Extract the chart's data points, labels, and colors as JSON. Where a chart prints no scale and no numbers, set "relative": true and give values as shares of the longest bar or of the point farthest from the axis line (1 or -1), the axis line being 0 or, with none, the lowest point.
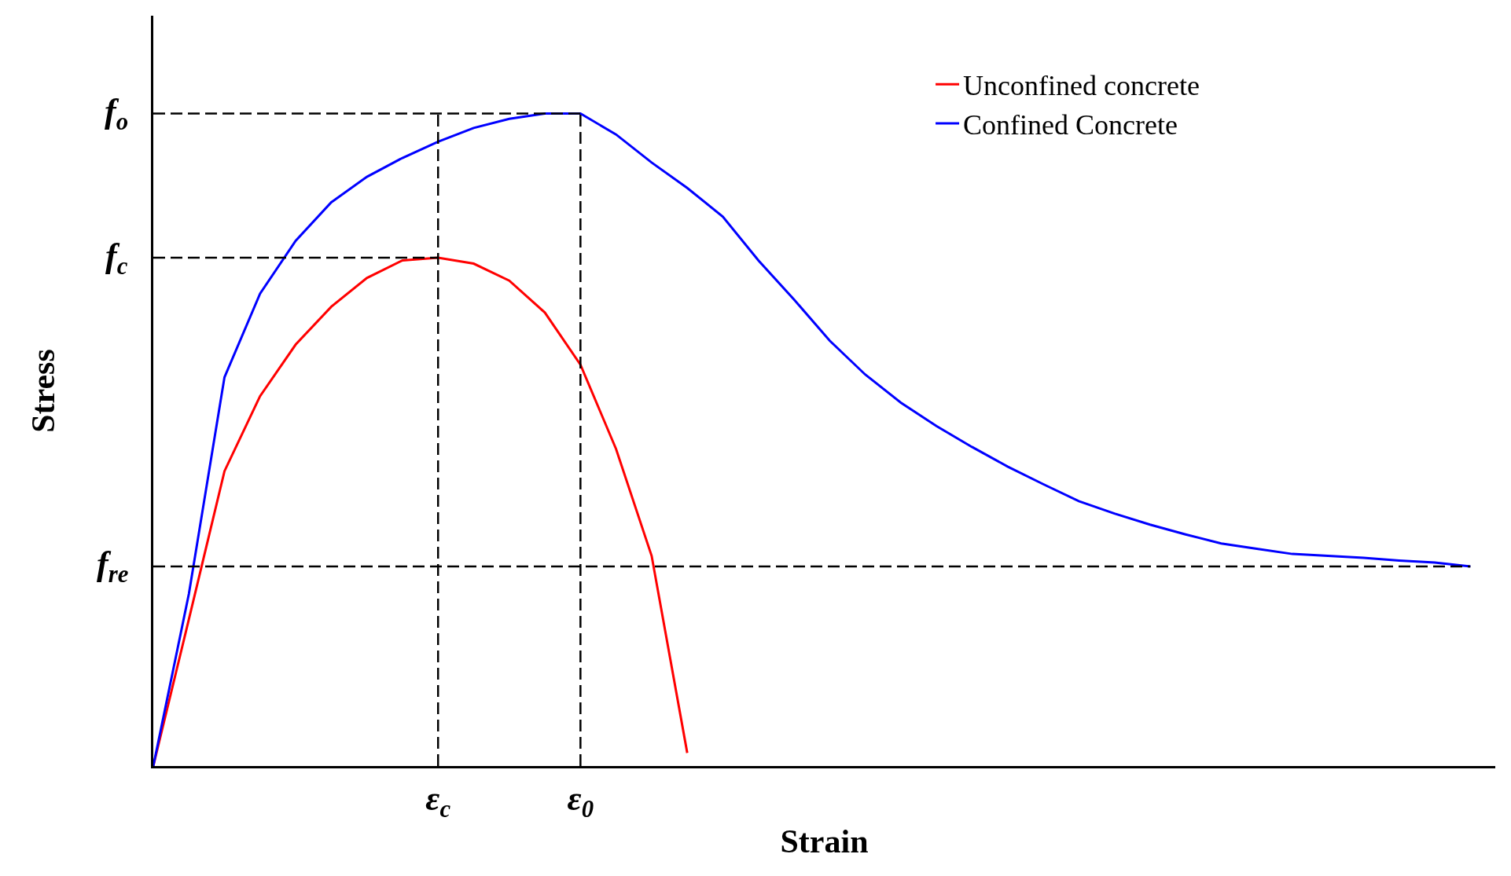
{
  "chart_data": {
    "type": "line",
    "relative": true,
    "xlabel": "Strain",
    "ylabel": "Stress",
    "categories": [
      null,
      null,
      null,
      null,
      null,
      null,
      null,
      null,
      "ε$_{c}$",
      null,
      null,
      null,
      "ε$_{0}$",
      null,
      null,
      null,
      null,
      null,
      null,
      null,
      null,
      null,
      null,
      null,
      null,
      null,
      null,
      null,
      null,
      null,
      null,
      null,
      null,
      null,
      null,
      null,
      null,
      null
    ],
    "legend": "top right",
    "marker": "none",
    "line_style": "solid",
    "annotations": [
      "f$_{o}$",
      "f$_{c}$",
      "f$_{re}$"
    ],
    "ref_lines": [
      {
        "axis": "x",
        "value": "ε$_{c}$",
        "color": "#000000",
        "line_style": "dashed"
      },
      {
        "axis": "x",
        "value": "ε$_{0}$",
        "color": "#000000",
        "line_style": "dashed"
      }
    ],
    "series": [
      {
        "name": "Unconfined concrete",
        "color": "#ff0000",
        "values": [
          0,
          0.225,
          0.452,
          0.567,
          0.646,
          0.704,
          0.748,
          0.775,
          0.779,
          0.77,
          0.744,
          0.695,
          0.615,
          0.486,
          0.322,
          0.02,
          null,
          null,
          null,
          null,
          null,
          null,
          null,
          null,
          null,
          null,
          null,
          null,
          null,
          null,
          null,
          null,
          null,
          null,
          null,
          null,
          null,
          null
        ]
      },
      {
        "name": "Confined Concrete",
        "color": "#0000ff",
        "values": [
          0,
          0.264,
          0.596,
          0.724,
          0.805,
          0.864,
          0.903,
          0.932,
          0.957,
          0.978,
          0.992,
          1,
          1,
          0.968,
          0.925,
          0.886,
          0.842,
          0.775,
          0.715,
          0.652,
          0.6,
          0.557,
          0.521,
          0.489,
          0.459,
          0.432,
          0.406,
          0.387,
          0.37,
          0.355,
          0.341,
          0.333,
          0.325,
          0.322,
          0.319,
          0.315,
          0.312,
          0.306
        ]
      },
      {
        "color": "#000000",
        "line_style": "dashed",
        "values": [
          1,
          1,
          1,
          1,
          1,
          1,
          1,
          1,
          1,
          1,
          1,
          1,
          1,
          null,
          null,
          null,
          null,
          null,
          null,
          null,
          null,
          null,
          null,
          null,
          null,
          null,
          null,
          null,
          null,
          null,
          null,
          null,
          null,
          null,
          null,
          null,
          null,
          null
        ]
      },
      {
        "color": "#000000",
        "line_style": "dashed",
        "values": [
          0.779,
          0.779,
          0.779,
          0.779,
          0.779,
          0.779,
          0.779,
          0.779,
          0.779,
          null,
          null,
          null,
          null,
          null,
          null,
          null,
          null,
          null,
          null,
          null,
          null,
          null,
          null,
          null,
          null,
          null,
          null,
          null,
          null,
          null,
          null,
          null,
          null,
          null,
          null,
          null,
          null,
          null
        ]
      },
      {
        "color": "#000000",
        "line_style": "dashed",
        "values": [
          0.306,
          0.306,
          0.306,
          0.306,
          0.306,
          0.306,
          0.306,
          0.306,
          0.306,
          0.306,
          0.306,
          0.306,
          0.306,
          0.306,
          0.306,
          0.306,
          0.306,
          0.306,
          0.306,
          0.306,
          0.306,
          0.306,
          0.306,
          0.306,
          0.306,
          0.306,
          0.306,
          0.306,
          0.306,
          0.306,
          0.306,
          0.306,
          0.306,
          0.306,
          0.306,
          0.306,
          0.306,
          0.306
        ]
      }
    ]
  }
}
